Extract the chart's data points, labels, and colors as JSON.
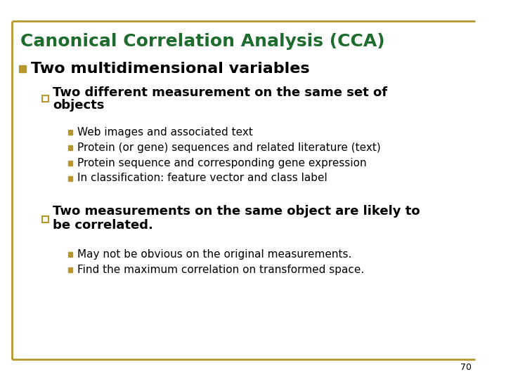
{
  "title": "Canonical Correlation Analysis (CCA)",
  "title_color": "#1E6B2E",
  "title_fontsize": 18,
  "background_color": "#FFFFFF",
  "border_color": "#B8972A",
  "bullet1_text": "Two multidimensional variables",
  "bullet1_fontsize": 16,
  "bullet1_marker_color": "#B8972A",
  "sub_bullet1_line1": "Two different measurement on the same set of",
  "sub_bullet1_line2": "objects",
  "sub_bullet1_fontsize": 13,
  "sub_sub_bullets1": [
    "Web images and associated text",
    "Protein (or gene) sequences and related literature (text)",
    "Protein sequence and corresponding gene expression",
    "In classification: feature vector and class label"
  ],
  "sub_sub_fontsize1": 11,
  "sub_bullet2_line1": "Two measurements on the same object are likely to",
  "sub_bullet2_line2": "be correlated.",
  "sub_bullet2_fontsize": 13,
  "sub_sub_bullets2": [
    "May not be obvious on the original measurements.",
    "Find the maximum correlation on transformed space."
  ],
  "sub_sub_fontsize2": 11,
  "marker_color": "#B8972A",
  "text_color": "#000000",
  "page_number": "70",
  "page_number_fontsize": 9
}
